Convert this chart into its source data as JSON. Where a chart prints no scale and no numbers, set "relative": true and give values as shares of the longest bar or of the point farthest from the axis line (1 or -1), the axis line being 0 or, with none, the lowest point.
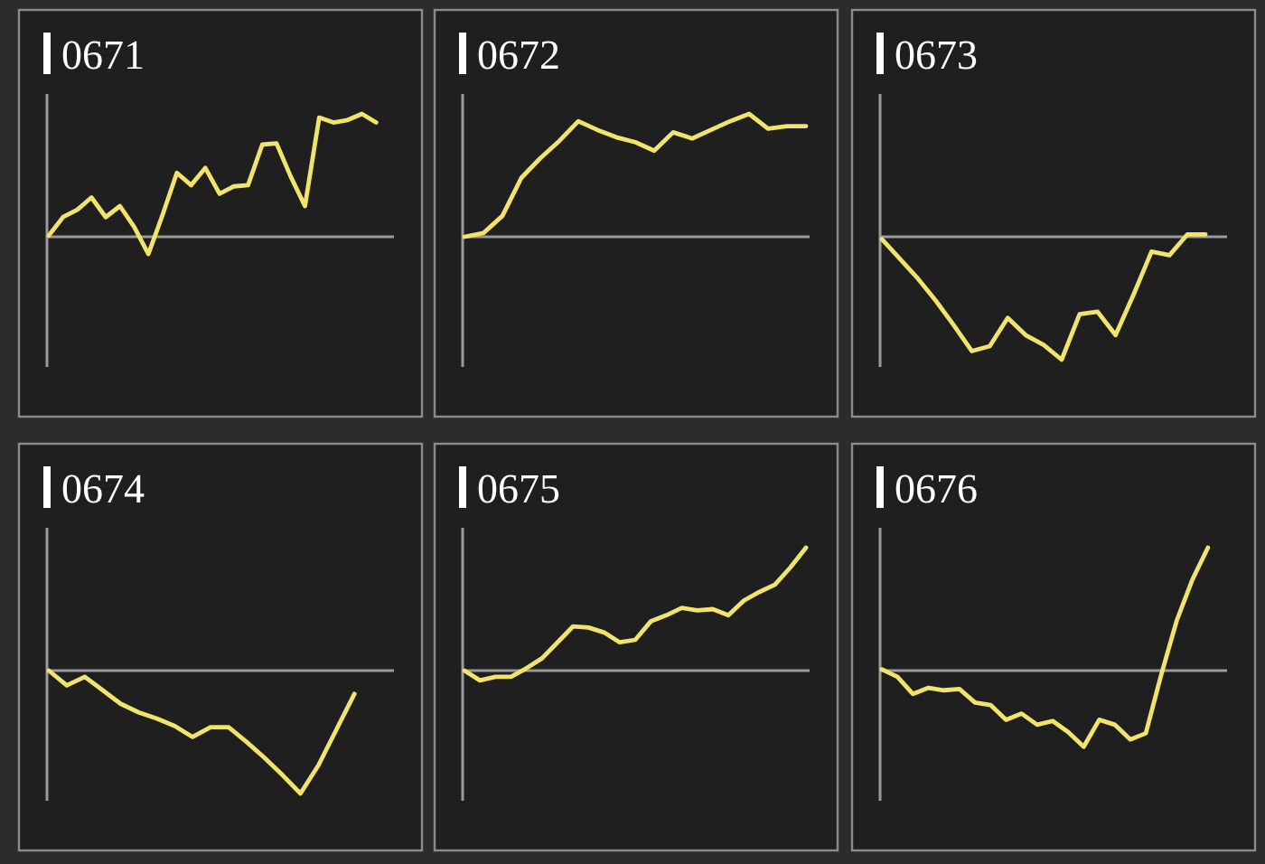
{
  "chart_data": [
    {
      "type": "line",
      "title": "0671",
      "relative": true,
      "categories": [
        null,
        null,
        null,
        null,
        null,
        null,
        null,
        null,
        null,
        null,
        null,
        null,
        null,
        null,
        null,
        null,
        null,
        null,
        null,
        null,
        null,
        null,
        null,
        null,
        null
      ],
      "series": [
        {
          "color": "#f2e46a",
          "values": [
            0.01,
            0.16,
            0.22,
            0.32,
            0.16,
            0.25,
            0.08,
            -0.14,
            0.18,
            0.52,
            0.42,
            0.56,
            0.35,
            0.41,
            0.42,
            0.75,
            0.76,
            0.49,
            0.25,
            0.97,
            0.93,
            0.95,
            1,
            0.93,
            null
          ]
        }
      ]
    },
    {
      "type": "line",
      "title": "0672",
      "relative": true,
      "categories": [
        null,
        null,
        null,
        null,
        null,
        null,
        null,
        null,
        null,
        null,
        null,
        null,
        null,
        null,
        null,
        null,
        null,
        null,
        null
      ],
      "series": [
        {
          "color": "#f2e46a",
          "values": [
            0,
            0.03,
            0.17,
            0.48,
            0.64,
            0.78,
            0.94,
            0.87,
            0.81,
            0.77,
            0.7,
            0.85,
            0.8,
            0.87,
            0.94,
            1,
            0.88,
            0.9,
            0.9
          ]
        }
      ]
    },
    {
      "type": "line",
      "title": "0673",
      "relative": true,
      "categories": [
        null,
        null,
        null,
        null,
        null,
        null,
        null,
        null,
        null,
        null,
        null,
        null,
        null,
        null,
        null,
        null,
        null,
        null,
        null,
        null
      ],
      "series": [
        {
          "color": "#f2e46a",
          "values": [
            -0.02,
            -0.18,
            -0.34,
            -0.52,
            -0.72,
            -0.93,
            -0.89,
            -0.66,
            -0.8,
            -0.88,
            -1,
            -0.63,
            -0.61,
            -0.8,
            -0.47,
            -0.12,
            -0.15,
            0.02,
            0.02,
            null
          ]
        }
      ]
    },
    {
      "type": "line",
      "title": "0674",
      "relative": true,
      "categories": [
        null,
        null,
        null,
        null,
        null,
        null,
        null,
        null,
        null,
        null,
        null,
        null,
        null,
        null,
        null,
        null,
        null,
        null,
        null,
        null
      ],
      "series": [
        {
          "color": "#f2e46a",
          "values": [
            0,
            -0.12,
            -0.05,
            -0.16,
            -0.27,
            -0.34,
            -0.39,
            -0.45,
            -0.54,
            -0.46,
            -0.46,
            -0.58,
            -0.71,
            -0.85,
            -1,
            -0.77,
            -0.48,
            -0.19,
            null,
            null
          ]
        }
      ]
    },
    {
      "type": "line",
      "title": "0675",
      "relative": true,
      "categories": [
        null,
        null,
        null,
        null,
        null,
        null,
        null,
        null,
        null,
        null,
        null,
        null,
        null,
        null,
        null,
        null,
        null,
        null,
        null,
        null,
        null,
        null,
        null
      ],
      "series": [
        {
          "color": "#f2e46a",
          "values": [
            0,
            -0.08,
            -0.05,
            -0.05,
            0.02,
            0.1,
            0.23,
            0.36,
            0.35,
            0.31,
            0.23,
            0.25,
            0.4,
            0.45,
            0.51,
            0.49,
            0.5,
            0.45,
            0.57,
            0.64,
            0.7,
            0.84,
            1
          ]
        }
      ]
    },
    {
      "type": "line",
      "title": "0676",
      "relative": true,
      "categories": [
        null,
        null,
        null,
        null,
        null,
        null,
        null,
        null,
        null,
        null,
        null,
        null,
        null,
        null,
        null,
        null,
        null,
        null,
        null,
        null,
        null,
        null,
        null
      ],
      "series": [
        {
          "color": "#f2e46a",
          "values": [
            0.01,
            -0.05,
            -0.19,
            -0.14,
            -0.16,
            -0.15,
            -0.26,
            -0.28,
            -0.4,
            -0.35,
            -0.44,
            -0.41,
            -0.5,
            -0.62,
            -0.4,
            -0.44,
            -0.56,
            -0.51,
            -0.03,
            0.41,
            0.74,
            1,
            null
          ]
        }
      ]
    }
  ]
}
